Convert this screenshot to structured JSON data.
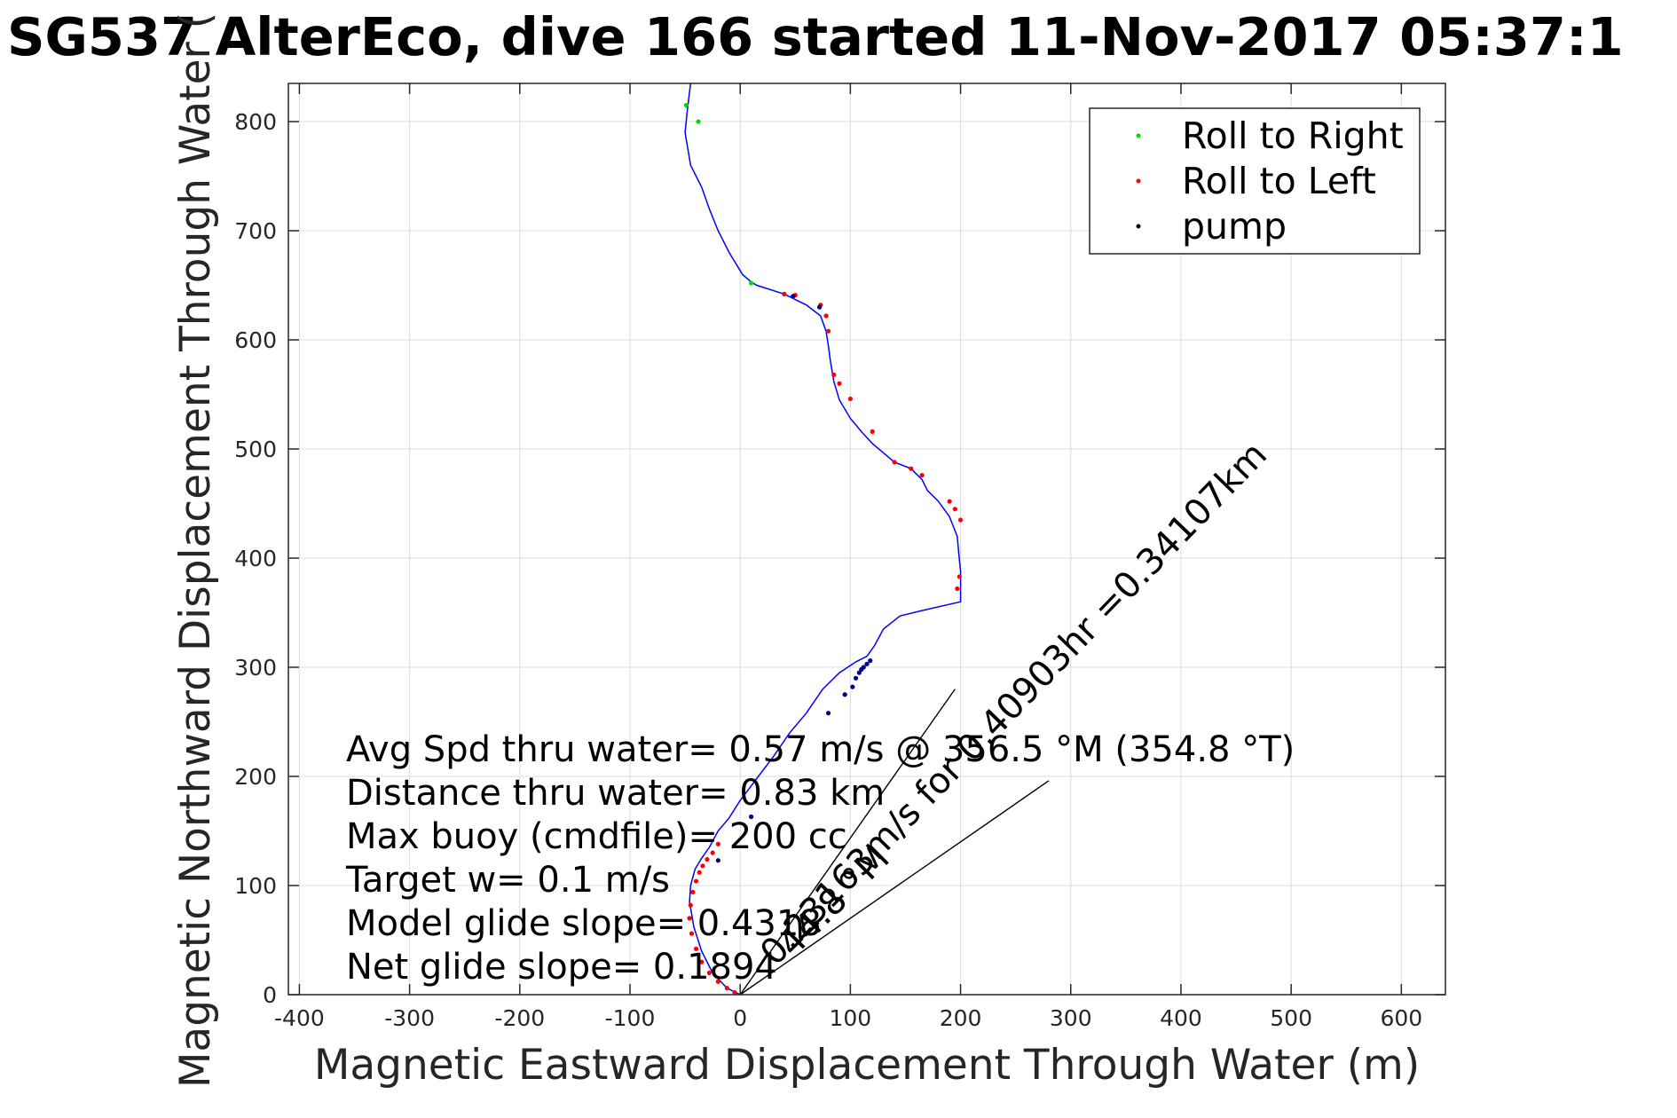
{
  "chart_data": {
    "type": "line",
    "title": "SG537 AlterEco, dive 166 started 11-Nov-2017 05:37:1",
    "xlabel": "Magnetic Eastward Displacement Through Water (m)",
    "ylabel": "Magnetic Northward Displacement Through Water (",
    "xlim": [
      -410,
      640
    ],
    "ylim": [
      0,
      835
    ],
    "xticks": [
      -400,
      -300,
      -200,
      -100,
      0,
      100,
      200,
      300,
      400,
      500,
      600
    ],
    "yticks": [
      0,
      100,
      200,
      300,
      400,
      500,
      600,
      700,
      800
    ],
    "grid": true,
    "legend_position": "top-right",
    "colors": {
      "track": "#0000ff",
      "roll_right": "#00dd00",
      "roll_left": "#ff0000",
      "pump": "#000080",
      "lines": "#000000"
    },
    "legend": [
      {
        "label": "Roll to Right",
        "color": "#00dd00"
      },
      {
        "label": "Roll to Left",
        "color": "#ff0000"
      },
      {
        "label": "pump",
        "color": "#000000"
      }
    ],
    "track": {
      "x": [
        0,
        -12,
        -25,
        -35,
        -42,
        -46,
        -45,
        -41,
        -35,
        -28,
        -20,
        -10,
        0,
        15,
        30,
        45,
        60,
        75,
        90,
        105,
        115,
        122,
        130,
        145,
        165,
        200,
        200,
        200,
        199,
        197,
        190,
        180,
        170,
        165,
        155,
        140,
        120,
        110,
        100,
        90,
        85,
        82,
        80,
        78,
        73,
        60,
        40,
        15,
        10,
        2,
        -10,
        -20,
        -28,
        -35,
        -45,
        -50,
        -48,
        -45
      ],
      "y": [
        0,
        6,
        20,
        40,
        62,
        85,
        100,
        115,
        125,
        135,
        150,
        162,
        178,
        198,
        218,
        240,
        258,
        280,
        295,
        305,
        310,
        320,
        335,
        347,
        352,
        360,
        372,
        388,
        398,
        420,
        438,
        452,
        462,
        472,
        482,
        488,
        505,
        516,
        528,
        545,
        562,
        580,
        595,
        608,
        622,
        632,
        642,
        650,
        653,
        660,
        680,
        700,
        720,
        740,
        760,
        790,
        810,
        835
      ]
    },
    "roll_left_points": {
      "x": [
        -5,
        -12,
        -20,
        -28,
        -35,
        -40,
        -44,
        -46,
        -45,
        -43,
        -40,
        -37,
        -34,
        -30,
        -25,
        -20,
        40,
        50,
        73,
        78,
        80,
        85,
        90,
        100,
        120,
        140,
        155,
        165,
        190,
        195,
        197,
        199,
        200
      ],
      "y": [
        2,
        6,
        12,
        20,
        30,
        42,
        56,
        70,
        82,
        94,
        104,
        112,
        118,
        124,
        130,
        138,
        642,
        641,
        632,
        622,
        608,
        568,
        560,
        546,
        516,
        488,
        482,
        476,
        452,
        445,
        372,
        383,
        435
      ]
    },
    "roll_right_points": {
      "x": [
        10,
        -38,
        -49
      ],
      "y": [
        652,
        800,
        815
      ]
    },
    "pump_points": {
      "x": [
        102,
        105,
        108,
        110,
        112,
        115,
        118,
        95,
        80,
        10,
        -20,
        48,
        72
      ],
      "y": [
        282,
        290,
        295,
        298,
        300,
        303,
        306,
        275,
        258,
        163,
        123,
        640,
        630
      ]
    },
    "annotation_lines": [
      {
        "x": [
          0,
          195
        ],
        "y": [
          0,
          280
        ]
      },
      {
        "x": [
          0,
          280
        ],
        "y": [
          0,
          196
        ]
      }
    ],
    "annotations": {
      "stats": [
        "Avg Spd thru water=  0.57 m/s @ 356.5 °M (354.8 °T)",
        "Distance thru water=  0.83 km",
        "Max buoy (cmdfile)= 200 cc",
        "Target w= 0.1 m/s",
        "Model glide slope= 0.4318",
        "Net glide slope= 0.1894"
      ],
      "current_speed": "0.23163m/s for 0.40903hr =0.34107km",
      "current_direction": "44.8 °M"
    }
  }
}
